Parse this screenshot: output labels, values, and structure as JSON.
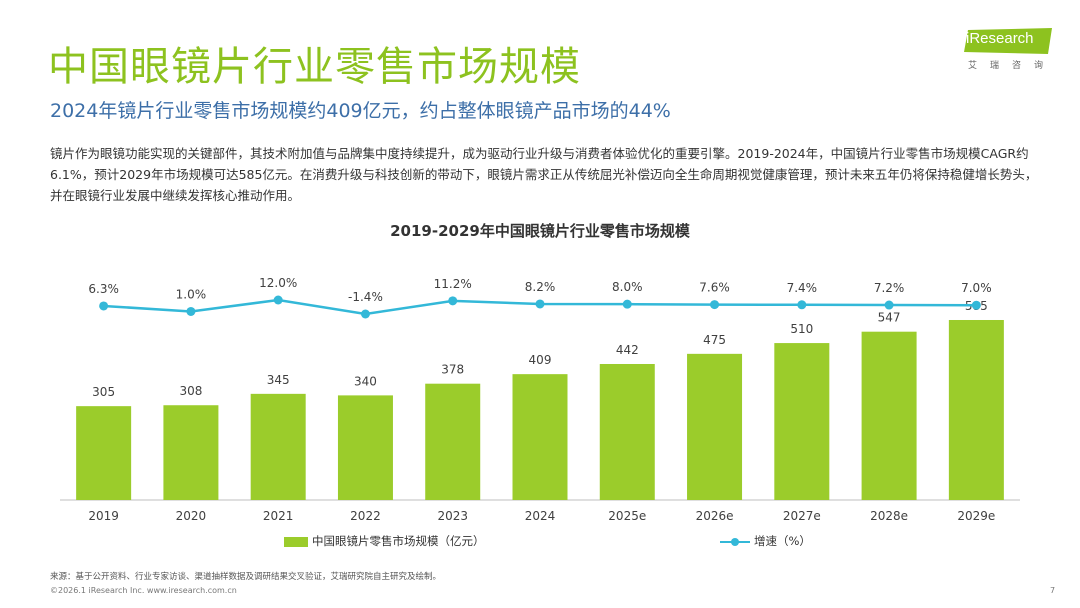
{
  "title": "中国眼镜片行业零售市场规模",
  "subtitle": "2024年镜片行业零售市场规模约409亿元，约占整体眼镜产品市场的44%",
  "body": "镜片作为眼镜功能实现的关键部件，其技术附加值与品牌集中度持续提升，成为驱动行业升级与消费者体验优化的重要引擎。2019-2024年，中国镜片行业零售市场规模CAGR约6.1%，预计2029年市场规模可达585亿元。在消费升级与科技创新的带动下，眼镜片需求正从传统屈光补偿迈向全生命周期视觉健康管理，预计未来五年仍将保持稳健增长势头，并在眼镜行业发展中继续发挥核心推动作用。",
  "logo": {
    "text": "iResearch",
    "cn": "艾瑞咨询"
  },
  "colors": {
    "title": "#8dc21f",
    "subtitle": "#3d6fa8",
    "bar": "#9bcc2b",
    "line": "#33b8d8"
  },
  "chart_data": {
    "type": "bar+line",
    "title": "2019-2029年中国眼镜片行业零售市场规模",
    "categories": [
      "2019",
      "2020",
      "2021",
      "2022",
      "2023",
      "2024",
      "2025e",
      "2026e",
      "2027e",
      "2028e",
      "2029e"
    ],
    "series": [
      {
        "name": "中国眼镜片零售市场规模（亿元）",
        "type": "bar",
        "values": [
          305,
          308,
          345,
          340,
          378,
          409,
          442,
          475,
          510,
          547,
          585
        ]
      },
      {
        "name": "增速（%）",
        "type": "line",
        "values": [
          6.3,
          1.0,
          12.0,
          -1.4,
          11.2,
          8.2,
          8.0,
          7.6,
          7.4,
          7.2,
          7.0
        ],
        "labels": [
          "6.3%",
          "1.0%",
          "12.0%",
          "-1.4%",
          "11.2%",
          "8.2%",
          "8.0%",
          "7.6%",
          "7.4%",
          "7.2%",
          "7.0%"
        ]
      }
    ],
    "legend_position": "bottom",
    "grid": false
  },
  "source": "来源：基于公开资料、行业专家访谈、渠道抽样数据及调研结果交叉验证，艾瑞研究院自主研究及绘制。",
  "footer": "©2026.1 iResearch Inc.                    www.iresearch.com.cn",
  "page_number": "7"
}
